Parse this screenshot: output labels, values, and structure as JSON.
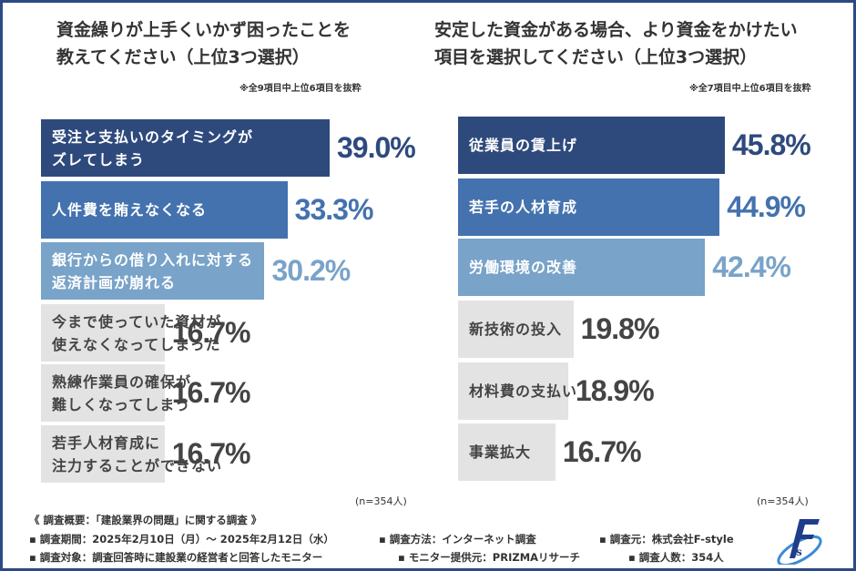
{
  "chart_data": [
    {
      "type": "bar",
      "orientation": "horizontal",
      "title": "資金繰りが上手くいかず困ったことを教えてください（上位3つ選択）",
      "note": "※全9項目中上位6項目を抜粋",
      "sample": "(n=354人)",
      "categories": [
        "受注と支払いのタイミングがズレてしまう",
        "人件費を賄えなくなる",
        "銀行からの借り入れに対する返済計画が崩れる",
        "今まで使っていた資材が使えなくなってしまった",
        "熟練作業員の確保が難しくなってしまう",
        "若手人材育成に注力することができない"
      ],
      "labels": [
        [
          "受注と支払いのタイミングが",
          "ズレてしまう"
        ],
        [
          "人件費を賄えなくなる"
        ],
        [
          "銀行からの借り入れに対する",
          "返済計画が崩れる"
        ],
        [
          "今まで使っていた資材が",
          "使えなくなってしまった"
        ],
        [
          "熟練作業員の確保が",
          "難しくなってしまう"
        ],
        [
          "若手人材育成に",
          "注力することができない"
        ]
      ],
      "values": [
        39.0,
        33.3,
        30.2,
        16.7,
        16.7,
        16.7
      ],
      "value_labels": [
        "39.0%",
        "33.3%",
        "30.2%",
        "16.7%",
        "16.7%",
        "16.7%"
      ],
      "xlim": [
        0,
        39.0
      ]
    },
    {
      "type": "bar",
      "orientation": "horizontal",
      "title": "安定した資金がある場合、より資金をかけたい項目を選択してください（上位3つ選択）",
      "note": "※全7項目中上位6項目を抜粋",
      "sample": "(n=354人)",
      "categories": [
        "従業員の賃上げ",
        "若手の人材育成",
        "労働環境の改善",
        "新技術の投入",
        "材料費の支払い",
        "事業拡大"
      ],
      "labels": [
        [
          "従業員の賃上げ"
        ],
        [
          "若手の人材育成"
        ],
        [
          "労働環境の改善"
        ],
        [
          "新技術の投入"
        ],
        [
          "材料費の支払い"
        ],
        [
          "事業拡大"
        ]
      ],
      "values": [
        45.8,
        44.9,
        42.4,
        19.8,
        18.9,
        16.7
      ],
      "value_labels": [
        "45.8%",
        "44.9%",
        "42.4%",
        "19.8%",
        "18.9%",
        "16.7%"
      ],
      "xlim": [
        0,
        45.8
      ]
    }
  ],
  "titles": {
    "left": [
      "資金繰りが上手くいかず困ったことを",
      "教えてください（上位3つ選択）"
    ],
    "right": [
      "安定した資金がある場合、より資金をかけたい",
      "項目を選択してください（上位3つ選択）"
    ]
  },
  "colors": {
    "bar": [
      "#2e4a7d",
      "#4472ae",
      "#79a3c9",
      "#e3e3e3",
      "#e3e3e3",
      "#e3e3e3"
    ],
    "value": [
      "#2e4a7d",
      "#4472ae",
      "#79a3c9",
      "#444444",
      "#444444",
      "#444444"
    ],
    "frame": "#2b4a86"
  },
  "footer": {
    "heading": "《 調査概要：「建設業界の問題」に関する調査 》",
    "period": "▪ 調査期間：2025年2月10日（月）～  2025年2月12日（水）",
    "method": "▪ 調査方法：インターネット調査",
    "source": "▪ 調査元：株式会社F-style",
    "target": "▪ 調査対象：調査回答時に建設業の経営者と回答したモニター",
    "provider": "▪ モニター提供元：PRIZMAリサーチ",
    "count": "▪ 調査人数：354人"
  },
  "logo": "F-style"
}
